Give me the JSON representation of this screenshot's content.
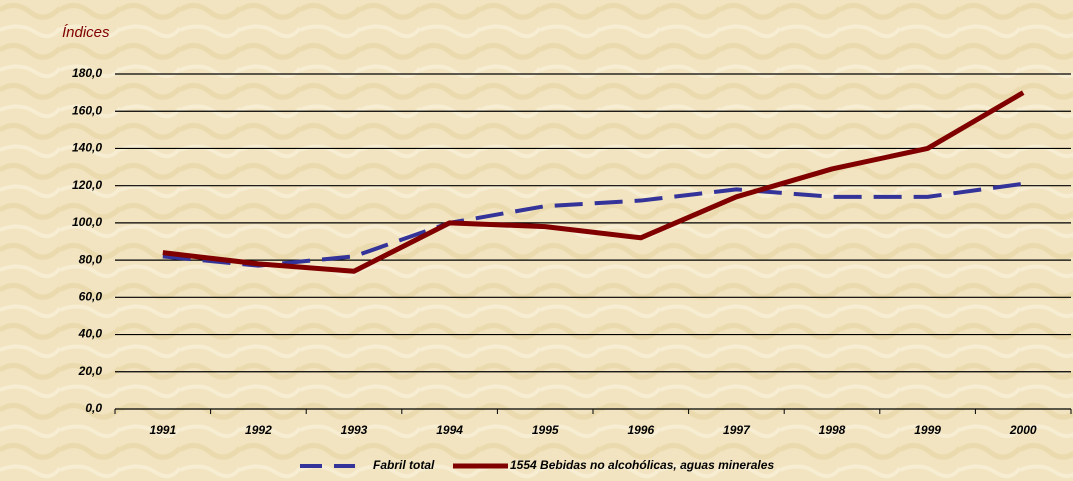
{
  "chart_data": {
    "type": "line",
    "y_axis_label": "Índices",
    "categories": [
      "1991",
      "1992",
      "1993",
      "1994",
      "1995",
      "1996",
      "1997",
      "1998",
      "1999",
      "2000"
    ],
    "series": [
      {
        "name": "Fabril total",
        "color": "#333399",
        "dashed": true,
        "values": [
          82,
          77,
          82,
          100,
          109,
          112,
          118,
          114,
          114,
          121
        ]
      },
      {
        "name": "1554 Bebidas no alcohólicas, aguas minerales",
        "color": "#800000",
        "dashed": false,
        "values": [
          84,
          78,
          74,
          100,
          98,
          92,
          114,
          129,
          140,
          170
        ]
      }
    ],
    "ylim": [
      0,
      180
    ],
    "yticks": [
      {
        "value": 0,
        "label": "0,0"
      },
      {
        "value": 20,
        "label": "20,0"
      },
      {
        "value": 40,
        "label": "40,0"
      },
      {
        "value": 60,
        "label": "60,0"
      },
      {
        "value": 80,
        "label": "80,0"
      },
      {
        "value": 100,
        "label": "100,0"
      },
      {
        "value": 120,
        "label": "120,0"
      },
      {
        "value": 140,
        "label": "140,0"
      },
      {
        "value": 160,
        "label": "160,0"
      },
      {
        "value": 180,
        "label": "180,0"
      }
    ],
    "grid": true,
    "legend": "bottom"
  }
}
